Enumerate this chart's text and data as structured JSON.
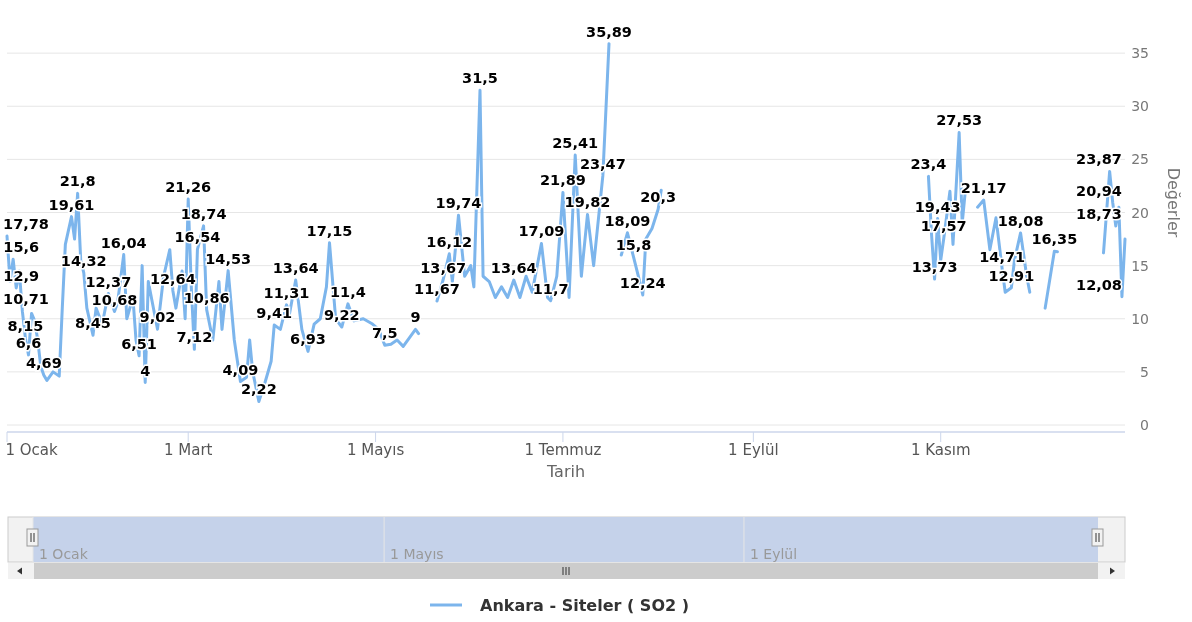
{
  "chart_data": {
    "type": "line",
    "xlabel": "Tarih",
    "ylabel": "Değerler",
    "xlim": [
      "--01-01",
      "--12-31"
    ],
    "xticks": [
      {
        "value": "--01-01",
        "label": "1 Ocak"
      },
      {
        "value": "--03-01",
        "label": "1 Mart"
      },
      {
        "value": "--05-01",
        "label": "1 Mayıs"
      },
      {
        "value": "--07-01",
        "label": "1 Temmuz"
      },
      {
        "value": "--09-01",
        "label": "1 Eylül"
      },
      {
        "value": "--11-01",
        "label": "1 Kasım"
      }
    ],
    "ylim": [
      0,
      40
    ],
    "yticks": [
      0,
      5,
      10,
      15,
      20,
      25,
      30,
      35
    ],
    "grid": "y",
    "legend": "bottom",
    "marker": "none",
    "line_style": "solid",
    "series": [
      {
        "name": "Ankara - Siteler ( SO2 )",
        "color": "#7cb5ec",
        "x": [
          "--01-01",
          "--01-02",
          "--01-03",
          "--01-04",
          "--01-05",
          "--01-06",
          "--01-07",
          "--01-08",
          "--01-09",
          "--01-10",
          "--01-11",
          "--01-12",
          "--01-13",
          "--01-14",
          "--01-16",
          "--01-18",
          "--01-19",
          "--01-20",
          "--01-22",
          "--01-23",
          "--01-24",
          "--01-25",
          "--01-26",
          "--01-27",
          "--01-29",
          "--01-30",
          "--02-01",
          "--02-03",
          "--02-05",
          "--02-06",
          "--02-08",
          "--02-09",
          "--02-11",
          "--02-12",
          "--02-13",
          "--02-14",
          "--02-15",
          "--02-16",
          "--02-19",
          "--02-21",
          "--02-23",
          "--02-24",
          "--02-25",
          "--02-27",
          "--02-28",
          "--03-01",
          "--03-02",
          "--03-03",
          "--03-04",
          "--03-06",
          "--03-07",
          "--03-09",
          "--03-11",
          "--03-12",
          "--03-14",
          "--03-16",
          "--03-18",
          "--03-20",
          "--03-21",
          "--03-22",
          "--03-24",
          "--03-26",
          "--03-28",
          "--03-29",
          "--03-31",
          "--04-02",
          "--04-03",
          "--04-05",
          "--04-07",
          "--04-09",
          "--04-11",
          "--04-13",
          "--04-15",
          "--04-16",
          "--04-18",
          "--04-20",
          "--04-22",
          "--04-24",
          "--04-27",
          "--04-30",
          "--05-02",
          "--05-04",
          "--05-06",
          "--05-08",
          "--05-10",
          "--05-12",
          "--05-14",
          "--05-15",
          "--05-16",
          "--05-21",
          "--05-23",
          "--05-25",
          "--05-26",
          "--05-28",
          "--05-30",
          "--06-01",
          "--06-02",
          "--06-04",
          "--06-05",
          "--06-07",
          "--06-09",
          "--06-11",
          "--06-13",
          "--06-15",
          "--06-17",
          "--06-19",
          "--06-21",
          "--06-24",
          "--06-26",
          "--06-27",
          "--06-29",
          "--07-01",
          "--07-03",
          "--07-05",
          "--07-07",
          "--07-09",
          "--07-11",
          "--07-14",
          "--07-16",
          "--07-17",
          "--07-20",
          "--07-22",
          "--07-24",
          "--07-26",
          "--07-27",
          "--07-28",
          "--07-30",
          "--08-01",
          "--08-02",
          "--08-03",
          "--10-28",
          "--10-29",
          "--10-30",
          "--10-31",
          "--11-01",
          "--11-02",
          "--11-04",
          "--11-05",
          "--11-07",
          "--11-08",
          "--11-09",
          "--11-10",
          "--11-13",
          "--11-15",
          "--11-17",
          "--11-19",
          "--11-21",
          "--11-22",
          "--11-24",
          "--11-25",
          "--11-27",
          "--11-29",
          "--11-30",
          "--12-01",
          "--12-05",
          "--12-08",
          "--12-09",
          "--12-10",
          "--12-24",
          "--12-26",
          "--12-27",
          "--12-28",
          "--12-29",
          "--12-30",
          "--12-31"
        ],
        "values": [
          17.78,
          13.5,
          15.6,
          12.9,
          14.5,
          10.71,
          8.15,
          6.6,
          10.5,
          9.8,
          8.0,
          5.5,
          4.69,
          4.2,
          5.0,
          4.6,
          11.0,
          17.0,
          19.61,
          17.5,
          21.8,
          15.5,
          14.32,
          11.0,
          8.45,
          11.0,
          9.5,
          12.37,
          10.68,
          11.5,
          16.04,
          10.0,
          12.0,
          8.0,
          6.51,
          15.0,
          4,
          13.5,
          9.02,
          14.0,
          16.5,
          12.64,
          11.0,
          14.5,
          10.0,
          21.26,
          13.0,
          7.12,
          16.54,
          18.74,
          10.86,
          8.0,
          13.5,
          9.0,
          14.53,
          8.0,
          4.09,
          4.5,
          8.0,
          5.0,
          2.22,
          4.0,
          6.0,
          9.41,
          9.0,
          11.31,
          10.5,
          13.64,
          9.0,
          6.93,
          9.5,
          10.0,
          13.0,
          17.15,
          10.0,
          9.22,
          11.4,
          9.8,
          10.0,
          9.5,
          9.0,
          7.5,
          7.6,
          8.0,
          7.4,
          8.2,
          9,
          8.6,
          null,
          11.67,
          13.67,
          16.12,
          13.5,
          19.74,
          14.0,
          15.0,
          13.0,
          31.5,
          14.0,
          13.5,
          12.0,
          13.0,
          12.0,
          13.64,
          12.0,
          14.0,
          12.5,
          17.09,
          12.0,
          11.7,
          14.0,
          21.89,
          12.0,
          25.41,
          14.0,
          19.82,
          15.0,
          23.47,
          35.89,
          null,
          16.0,
          18.09,
          15.8,
          13.5,
          12.24,
          17.5,
          18.5,
          20.3,
          22.1,
          null,
          23.4,
          18.0,
          13.73,
          19.43,
          15.5,
          17.57,
          22.0,
          17.0,
          27.53,
          19.0,
          22.0,
          null,
          20.5,
          21.17,
          16.5,
          19.5,
          14.71,
          12.5,
          12.91,
          15.5,
          18.08,
          14.0,
          12.5,
          null,
          11.0,
          16.35,
          16.3,
          null,
          16.2,
          23.87,
          20.94,
          18.73,
          20.5,
          12.08,
          17.5
        ],
        "value_labels": [
          "17,78",
          null,
          "15,6",
          "12,9",
          null,
          "10,71",
          "8,15",
          "6,6",
          null,
          null,
          null,
          null,
          "4,69",
          null,
          null,
          null,
          null,
          null,
          "19,61",
          null,
          "21,8",
          null,
          "14,32",
          null,
          "8,45",
          null,
          null,
          "12,37",
          "10,68",
          null,
          "16,04",
          null,
          null,
          null,
          "6,51",
          null,
          "4",
          null,
          "9,02",
          null,
          null,
          "12,64",
          null,
          null,
          null,
          "21,26",
          null,
          "7,12",
          "16,54",
          "18,74",
          "10,86",
          null,
          null,
          null,
          "14,53",
          null,
          "4,09",
          null,
          null,
          null,
          "2,22",
          null,
          null,
          "9,41",
          null,
          "11,31",
          null,
          "13,64",
          null,
          "6,93",
          null,
          null,
          null,
          "17,15",
          null,
          "9,22",
          "11,4",
          null,
          null,
          null,
          null,
          "7,5",
          null,
          null,
          null,
          null,
          "9",
          null,
          null,
          "11,67",
          "13,67",
          "16,12",
          null,
          "19,74",
          null,
          null,
          null,
          "31,5",
          null,
          null,
          null,
          null,
          null,
          "13,64",
          null,
          null,
          null,
          "17,09",
          null,
          "11,7",
          null,
          "21,89",
          null,
          "25,41",
          null,
          "19,82",
          null,
          "23,47",
          "35,89",
          null,
          null,
          "18,09",
          "15,8",
          null,
          "12,24",
          null,
          null,
          "20,3",
          null,
          null,
          "23,4",
          null,
          "13,73",
          "19,43",
          null,
          "17,57",
          null,
          null,
          "27,53",
          null,
          null,
          null,
          null,
          "21,17",
          null,
          null,
          "14,71",
          null,
          "12,91",
          null,
          "18,08",
          null,
          null,
          null,
          null,
          "16,35",
          null,
          null,
          null,
          "23,87",
          "20,94",
          "18,73",
          null,
          "12,08",
          null
        ]
      }
    ]
  }
}
